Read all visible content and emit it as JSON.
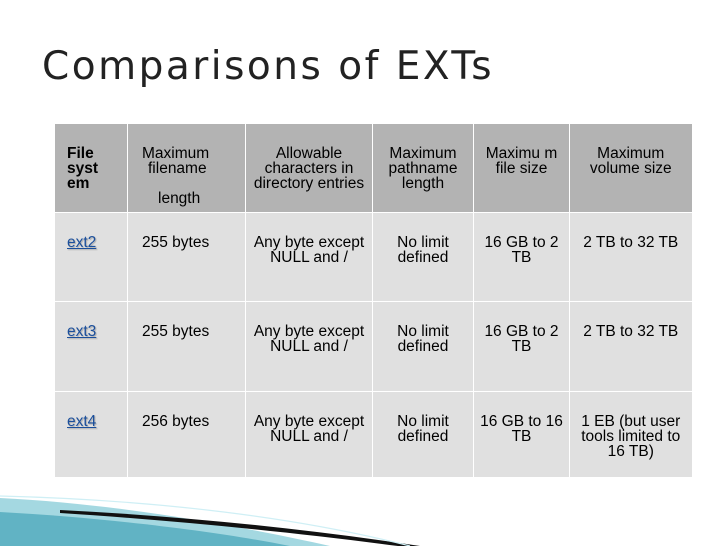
{
  "slide": {
    "title": "Comparisons of EXTs"
  },
  "table": {
    "headers": [
      "File syst em",
      [
        "Maximum",
        "filename",
        "length"
      ],
      "Allowable characters in directory entries",
      "Maximum pathname length",
      "Maximu m file size",
      "Maximum volume size"
    ],
    "rows": [
      {
        "fs": "ext2",
        "max_filename": "255 bytes",
        "allowable": "Any byte except NULL and /",
        "max_pathname": "No limit defined",
        "max_file": "16 GB to 2 TB",
        "max_volume": "2 TB to 32 TB"
      },
      {
        "fs": "ext3",
        "max_filename": "255 bytes",
        "allowable": "Any byte except NULL and /",
        "max_pathname": "No limit defined",
        "max_file": "16 GB to 2 TB",
        "max_volume": "2 TB to 32 TB"
      },
      {
        "fs": "ext4",
        "max_filename": "256 bytes",
        "allowable": "Any byte except NULL and /",
        "max_pathname": "No limit defined",
        "max_file": "16 GB to 16 TB",
        "max_volume": "1 EB (but user tools limited to 16 TB)"
      }
    ]
  },
  "colors": {
    "header_bg": "#b3b3b3",
    "row_bg": "#e0e0e0",
    "link": "#1b4f9c",
    "swoosh_teal": "#5ab8c8",
    "swoosh_dark": "#111111"
  }
}
